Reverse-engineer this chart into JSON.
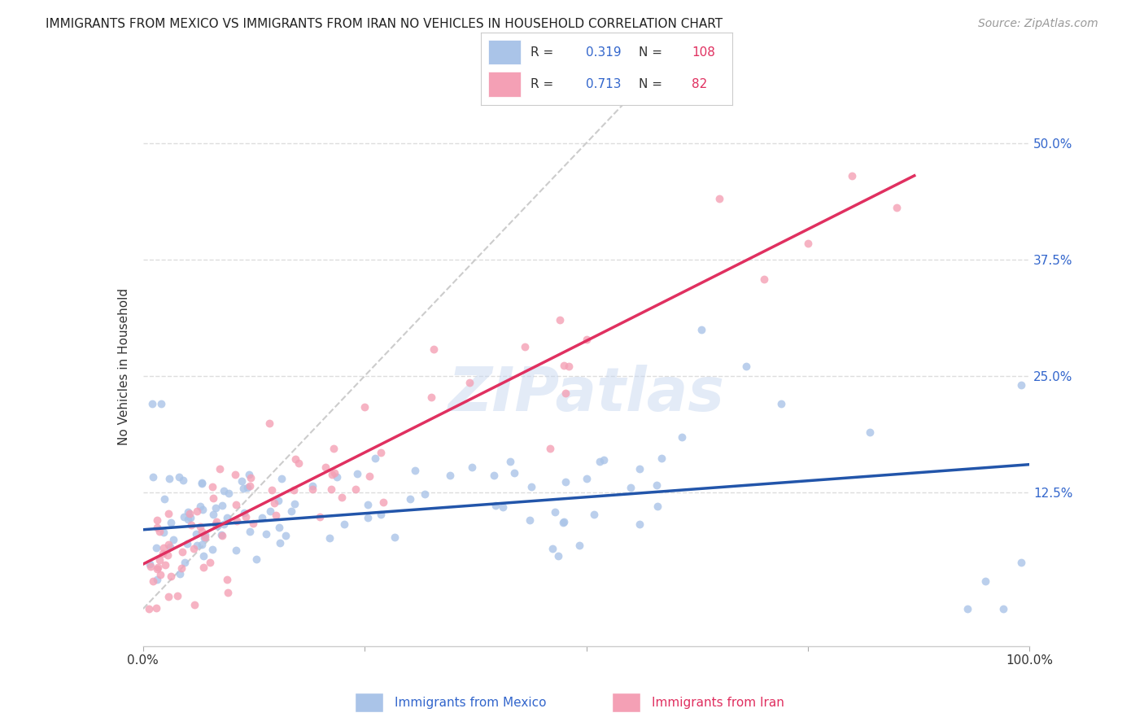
{
  "title": "IMMIGRANTS FROM MEXICO VS IMMIGRANTS FROM IRAN NO VEHICLES IN HOUSEHOLD CORRELATION CHART",
  "source": "Source: ZipAtlas.com",
  "ylabel": "No Vehicles in Household",
  "ytick_labels": [
    "12.5%",
    "25.0%",
    "37.5%",
    "50.0%"
  ],
  "ytick_values": [
    0.125,
    0.25,
    0.375,
    0.5
  ],
  "xlim": [
    0.0,
    1.0
  ],
  "ylim": [
    -0.04,
    0.56
  ],
  "watermark": "ZIPatlas",
  "mexico_color": "#aac4e8",
  "iran_color": "#f4a0b5",
  "mexico_line_color": "#2255aa",
  "iran_line_color": "#e03060",
  "diag_line_color": "#cccccc",
  "legend_R_mexico": "0.319",
  "legend_N_mexico": "108",
  "legend_R_iran": "0.713",
  "legend_N_iran": "82",
  "mexico_trendline": [
    [
      0.0,
      0.085
    ],
    [
      1.0,
      0.155
    ]
  ],
  "iran_trendline": [
    [
      0.0,
      0.048
    ],
    [
      0.87,
      0.465
    ]
  ],
  "diag_line": [
    [
      0.0,
      0.0
    ],
    [
      0.56,
      0.56
    ]
  ],
  "background_color": "#ffffff",
  "grid_color": "#dddddd"
}
